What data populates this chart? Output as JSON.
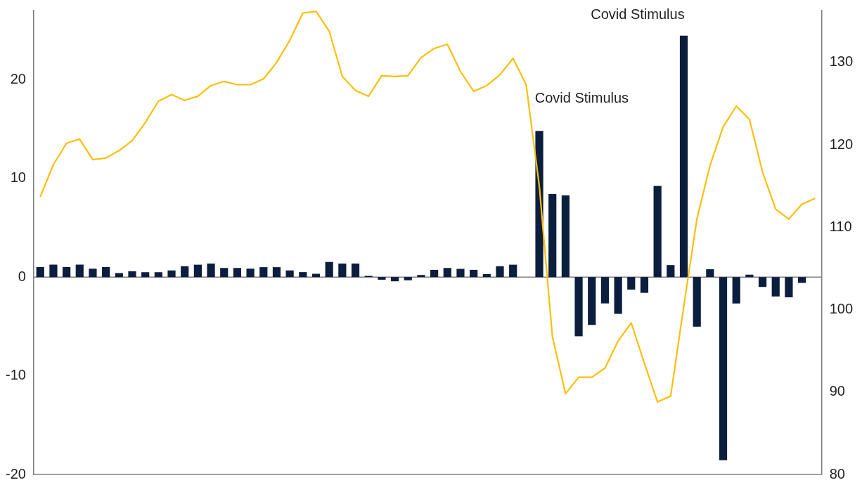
{
  "chart_data": {
    "type": "bar",
    "categories": [
      null,
      null,
      null,
      null,
      null,
      null,
      null,
      null,
      null,
      null,
      null,
      null,
      null,
      null,
      null,
      null,
      null,
      null,
      null,
      null,
      null,
      null,
      null,
      null,
      null,
      null,
      null,
      null,
      null,
      null,
      null,
      null,
      null,
      null,
      null,
      null,
      null,
      null,
      null,
      null,
      null,
      null,
      null,
      null,
      null,
      null,
      null,
      null,
      null,
      null,
      null,
      null,
      null,
      null,
      null,
      null,
      null,
      null,
      null,
      null
    ],
    "series": [
      {
        "color": "#0b1e3d",
        "values": [
          1.0,
          1.25,
          1.0,
          1.25,
          0.85,
          1.0,
          0.4,
          0.58,
          0.5,
          0.5,
          0.67,
          1.1,
          1.25,
          1.37,
          0.92,
          0.92,
          0.85,
          1.0,
          1.0,
          0.67,
          0.5,
          0.33,
          1.53,
          1.37,
          1.37,
          0.12,
          -0.27,
          -0.43,
          -0.33,
          0.21,
          0.73,
          0.92,
          0.83,
          0.73,
          0.3,
          1.1,
          1.25,
          0,
          14.8,
          8.42,
          8.27,
          -6.0,
          -4.85,
          -2.67,
          -3.73,
          -1.27,
          -1.6,
          9.24,
          1.21,
          24.45,
          -5.03,
          0.79,
          -18.55,
          -2.67,
          0.24,
          -1.0,
          -1.97,
          -2.06,
          -0.6,
          null
        ]
      },
      {
        "type": "line",
        "axis": "y2",
        "color": "#fbbf0a",
        "values": [
          113.7,
          117.6,
          120.2,
          120.7,
          118.2,
          118.4,
          119.3,
          120.5,
          122.7,
          125.3,
          126.1,
          125.4,
          125.9,
          127.2,
          127.7,
          127.3,
          127.3,
          128.0,
          130.0,
          132.7,
          136.0,
          136.2,
          133.8,
          128.3,
          126.6,
          125.9,
          128.4,
          128.3,
          128.4,
          130.6,
          131.7,
          132.2,
          128.9,
          126.5,
          127.2,
          128.5,
          130.5,
          127.3,
          115,
          96.7,
          89.8,
          91.8,
          91.8,
          92.9,
          96.2,
          98.4,
          93.5,
          88.8,
          89.5,
          100.4,
          111,
          117.5,
          122.2,
          124.7,
          123.1,
          116.7,
          112.2,
          111.0,
          112.8,
          113.5
        ]
      }
    ],
    "ylim": [
      -20,
      27
    ],
    "yticks": [
      -20,
      -10,
      0,
      10,
      20
    ],
    "y2lim": [
      80,
      136.3
    ],
    "y2ticks": [
      80,
      90,
      100,
      110,
      120,
      130
    ],
    "annotations": [
      "Covid Stimulus",
      "Covid Stimulus"
    ],
    "ref_lines": [
      {
        "axis": "y",
        "value": 0,
        "color": "#7f7f7f",
        "line_style": "solid"
      }
    ],
    "tick_labels": "y",
    "grid": false,
    "legend": false,
    "marker": "none",
    "line_style": "solid"
  }
}
